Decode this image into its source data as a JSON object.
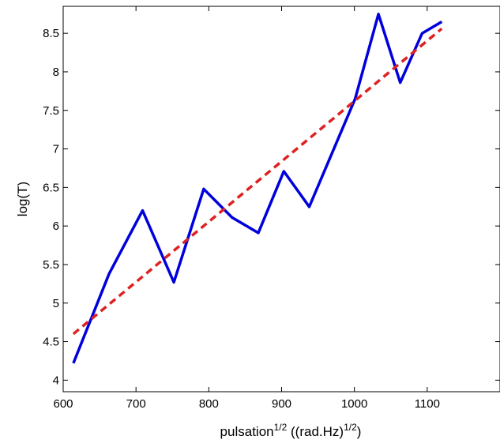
{
  "chart_data": {
    "type": "line",
    "title": "",
    "xlabel": {
      "base": "pulsation",
      "base_sup": "1/2",
      "unit_open": " ((rad.Hz)",
      "unit_sup": "1/2",
      "unit_close": ")"
    },
    "ylabel": "log(T)",
    "xlim": [
      600,
      1200
    ],
    "ylim": [
      3.85,
      8.85
    ],
    "xticks": [
      "600",
      "700",
      "800",
      "900",
      "1000",
      "1100"
    ],
    "yticks": [
      "4",
      "4.5",
      "5",
      "5.5",
      "6",
      "6.5",
      "7",
      "7.5",
      "8",
      "8.5"
    ],
    "grid": false,
    "series": [
      {
        "style": "solid",
        "color": "#0000dd",
        "x": [
          614,
          663,
          709,
          752,
          793,
          832,
          868,
          903,
          938,
          1001,
          1033,
          1063,
          1093,
          1120
        ],
        "y": [
          4.22,
          5.38,
          6.2,
          5.27,
          6.48,
          6.11,
          5.91,
          6.71,
          6.25,
          7.65,
          8.75,
          7.86,
          8.5,
          8.65
        ]
      },
      {
        "style": "dashed",
        "color": "#dd2222",
        "x": [
          614,
          1120
        ],
        "y": [
          4.6,
          8.56
        ]
      }
    ]
  }
}
